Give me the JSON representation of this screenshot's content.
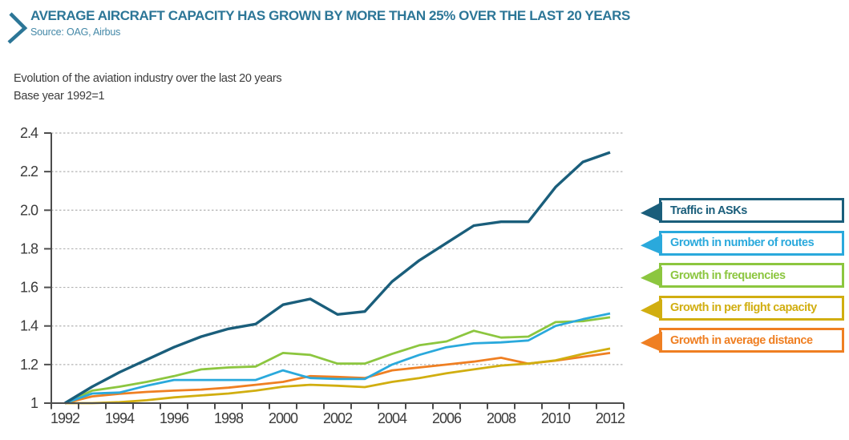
{
  "header": {
    "title": "AVERAGE AIRCRAFT CAPACITY HAS GROWN BY MORE THAN 25% OVER THE LAST 20 YEARS",
    "source": "Source: OAG, Airbus",
    "accent_color": "#2c7697",
    "source_color": "#4589a8"
  },
  "chart_data": {
    "type": "line",
    "title": "Evolution of the aviation industry over the last 20 years",
    "subtitle": "Base year 1992=1",
    "x": [
      1992,
      1993,
      1994,
      1995,
      1996,
      1997,
      1998,
      1999,
      2000,
      2001,
      2002,
      2003,
      2004,
      2005,
      2006,
      2007,
      2008,
      2009,
      2010,
      2011,
      2012
    ],
    "x_label_every": 2,
    "ylim": [
      1,
      2.4
    ],
    "y_tick_step": 0.2,
    "y_tick_labels": [
      "1",
      "1.2",
      "1.4",
      "1.6",
      "1.8",
      "2.0",
      "2.2",
      "2.4"
    ],
    "grid": "horizontal-dashed",
    "legend_position": "right",
    "axis_color": "#4d4d4d",
    "grid_color": "#b3b3b3",
    "tick_text_color": "#3b3b3b",
    "series": [
      {
        "name": "Traffic in ASKs",
        "color": "#1a5e7b",
        "values": [
          1.0,
          1.085,
          1.16,
          1.225,
          1.29,
          1.345,
          1.385,
          1.41,
          1.51,
          1.54,
          1.46,
          1.475,
          1.63,
          1.74,
          1.83,
          1.92,
          1.94,
          1.94,
          2.12,
          2.25,
          2.3
        ]
      },
      {
        "name": "Growth in number of routes",
        "color": "#2aa9dc",
        "values": [
          1.0,
          1.05,
          1.055,
          1.09,
          1.12,
          1.12,
          1.12,
          1.12,
          1.17,
          1.13,
          1.125,
          1.125,
          1.2,
          1.25,
          1.29,
          1.31,
          1.315,
          1.325,
          1.4,
          1.435,
          1.465
        ]
      },
      {
        "name": "Growth in frequencies",
        "color": "#8cc63f",
        "values": [
          1.0,
          1.065,
          1.085,
          1.11,
          1.14,
          1.175,
          1.185,
          1.19,
          1.26,
          1.25,
          1.205,
          1.205,
          1.255,
          1.3,
          1.32,
          1.375,
          1.34,
          1.345,
          1.42,
          1.425,
          1.445
        ]
      },
      {
        "name": "Growth in per flight capacity",
        "color": "#d1ae10",
        "values": [
          1.0,
          1.0,
          1.005,
          1.015,
          1.03,
          1.04,
          1.05,
          1.065,
          1.085,
          1.095,
          1.09,
          1.083,
          1.11,
          1.13,
          1.155,
          1.175,
          1.195,
          1.205,
          1.222,
          1.255,
          1.283
        ]
      },
      {
        "name": "Growth in average distance",
        "color": "#ef7f22",
        "values": [
          1.0,
          1.035,
          1.048,
          1.058,
          1.065,
          1.07,
          1.08,
          1.095,
          1.11,
          1.14,
          1.136,
          1.13,
          1.17,
          1.185,
          1.2,
          1.215,
          1.235,
          1.205,
          1.22,
          1.24,
          1.26
        ]
      }
    ]
  }
}
